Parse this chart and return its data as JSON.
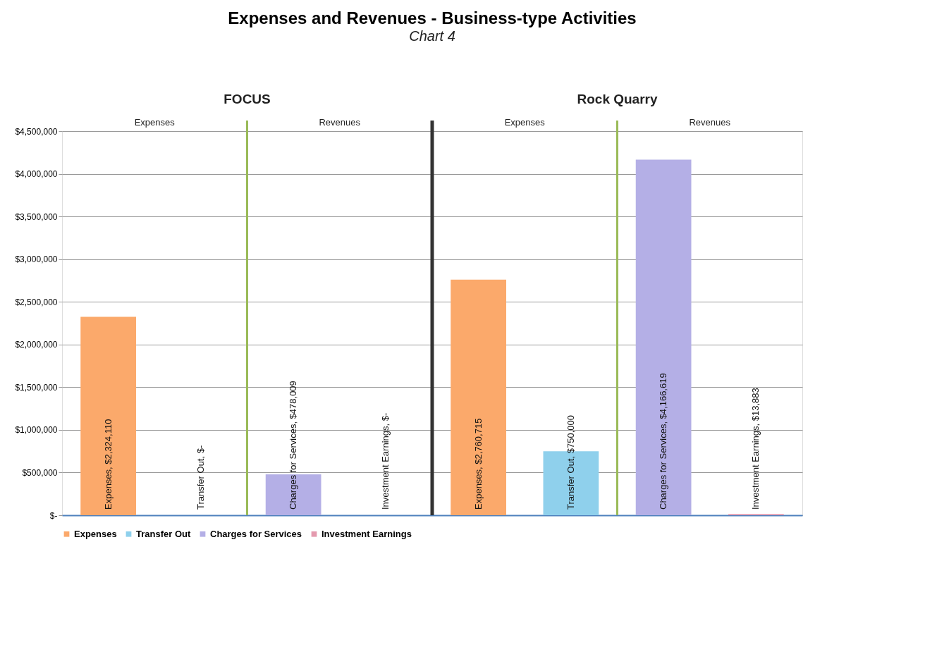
{
  "chart_data": {
    "type": "bar",
    "title": "Expenses and Revenues - Business-type Activities",
    "subtitle": "Chart 4",
    "categories": [
      null,
      null,
      null,
      null,
      null,
      null,
      null,
      null
    ],
    "series": [
      {
        "name": "Expenses",
        "color": "#fba96b",
        "values": [
          2324110,
          null,
          null,
          null,
          2760715,
          null,
          null,
          null
        ],
        "value_labels": [
          "Expenses,  $2,324,110",
          null,
          null,
          null,
          "Expenses,  $2,760,715",
          null,
          null,
          null
        ]
      },
      {
        "name": "Transfer Out",
        "color": "#8fd0ec",
        "values": [
          null,
          0,
          null,
          null,
          null,
          750000,
          null,
          null
        ],
        "value_labels": [
          null,
          "Transfer Out,  $-",
          null,
          null,
          null,
          "Transfer Out,  $750,000",
          null,
          null
        ]
      },
      {
        "name": "Charges for Services",
        "color": "#b4afe6",
        "values": [
          null,
          null,
          478009,
          null,
          null,
          null,
          4166619,
          null
        ],
        "value_labels": [
          null,
          null,
          "Charges for Services,  $478,009",
          null,
          null,
          null,
          "Charges for Services,  $4,166,619",
          null
        ]
      },
      {
        "name": "Investment Earnings",
        "color": "#e49aae",
        "values": [
          null,
          null,
          null,
          0,
          null,
          null,
          null,
          13883
        ],
        "value_labels": [
          null,
          null,
          null,
          "Investment Earnings,  $-",
          null,
          null,
          null,
          "Investment Earnings,  $13,883"
        ]
      }
    ],
    "ylim": [
      0,
      4500000
    ],
    "yticks": [
      {
        "value": 0,
        "label": "$-"
      },
      {
        "value": 500000,
        "label": "$500,000"
      },
      {
        "value": 1000000,
        "label": "$1,000,000"
      },
      {
        "value": 1500000,
        "label": "$1,500,000"
      },
      {
        "value": 2000000,
        "label": "$2,000,000"
      },
      {
        "value": 2500000,
        "label": "$2,500,000"
      },
      {
        "value": 3000000,
        "label": "$3,000,000"
      },
      {
        "value": 3500000,
        "label": "$3,500,000"
      },
      {
        "value": 4000000,
        "label": "$4,000,000"
      },
      {
        "value": 4500000,
        "label": "$4,500,000"
      }
    ],
    "annotations": [
      "FOCUS",
      "Rock Quarry",
      "Expenses",
      "Revenues",
      "Expenses",
      "Revenues"
    ],
    "grid": "y",
    "legend": "bottom"
  }
}
